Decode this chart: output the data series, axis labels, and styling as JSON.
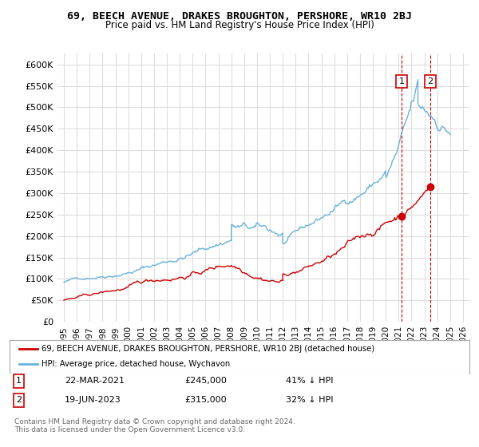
{
  "title": "69, BEECH AVENUE, DRAKES BROUGHTON, PERSHORE, WR10 2BJ",
  "subtitle": "Price paid vs. HM Land Registry's House Price Index (HPI)",
  "ylim": [
    0,
    625000
  ],
  "yticks": [
    0,
    50000,
    100000,
    150000,
    200000,
    250000,
    300000,
    350000,
    400000,
    450000,
    500000,
    550000,
    600000
  ],
  "hpi_color": "#6ab0de",
  "price_color": "#cc0000",
  "dashed_line_color": "#cc0000",
  "bg_color": "#ffffff",
  "grid_color": "#dddddd",
  "sale1_date": "22-MAR-2021",
  "sale1_price": "£245,000",
  "sale1_hpi": "41% ↓ HPI",
  "sale1_x": 2021.22,
  "sale1_y": 245000,
  "sale2_date": "19-JUN-2023",
  "sale2_price": "£315,000",
  "sale2_hpi": "32% ↓ HPI",
  "sale2_x": 2023.47,
  "sale2_y": 315000,
  "legend_label1": "69, BEECH AVENUE, DRAKES BROUGHTON, PERSHORE, WR10 2BJ (detached house)",
  "legend_label2": "HPI: Average price, detached house, Wychavon",
  "footer": "Contains HM Land Registry data © Crown copyright and database right 2024.\nThis data is licensed under the Open Government Licence v3.0.",
  "xlim": [
    1994.5,
    2026.5
  ]
}
